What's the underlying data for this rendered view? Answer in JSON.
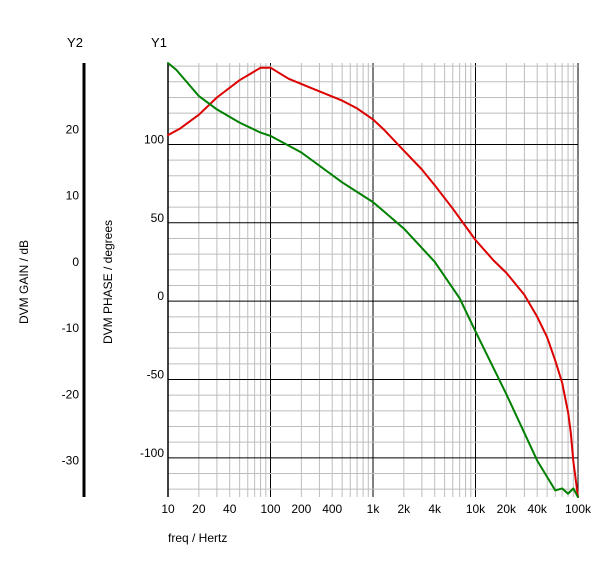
{
  "chart_data": {
    "type": "line",
    "axis_headers": {
      "y2": "Y2",
      "y1": "Y1"
    },
    "xlabel": "freq / Hertz",
    "y1label": "DVM PHASE / degrees",
    "y2label": "DVM GAIN / dB",
    "x_scale": "log",
    "xlim": [
      10,
      100000
    ],
    "y1lim": [
      -125,
      152
    ],
    "y2lim": [
      -35.5,
      30
    ],
    "x_ticks": [
      {
        "value": 10,
        "label": "10"
      },
      {
        "value": 20,
        "label": "20"
      },
      {
        "value": 40,
        "label": "40"
      },
      {
        "value": 100,
        "label": "100"
      },
      {
        "value": 200,
        "label": "200"
      },
      {
        "value": 400,
        "label": "400"
      },
      {
        "value": 1000,
        "label": "1k"
      },
      {
        "value": 2000,
        "label": "2k"
      },
      {
        "value": 4000,
        "label": "4k"
      },
      {
        "value": 10000,
        "label": "10k"
      },
      {
        "value": 20000,
        "label": "20k"
      },
      {
        "value": 40000,
        "label": "40k"
      },
      {
        "value": 100000,
        "label": "100k"
      }
    ],
    "y1_ticks": [
      {
        "value": 100,
        "label": "100"
      },
      {
        "value": 50,
        "label": "50"
      },
      {
        "value": 0,
        "label": "0"
      },
      {
        "value": -50,
        "label": "-50"
      },
      {
        "value": -100,
        "label": "-100"
      }
    ],
    "y2_ticks": [
      {
        "value": 20,
        "label": "20"
      },
      {
        "value": 10,
        "label": "10"
      },
      {
        "value": 0,
        "label": "0"
      },
      {
        "value": -10,
        "label": "-10"
      },
      {
        "value": -20,
        "label": "-20"
      },
      {
        "value": -30,
        "label": "-30"
      }
    ],
    "grid": true,
    "series": [
      {
        "color": "#dd0000",
        "axis": "y1",
        "x": [
          10,
          13,
          20,
          30,
          50,
          80,
          100,
          150,
          250,
          500,
          700,
          1000,
          1300,
          2000,
          3000,
          4000,
          6000,
          10000,
          15000,
          20000,
          30000,
          40000,
          50000,
          60000,
          70000,
          80000,
          85000,
          90000,
          100000
        ],
        "y": [
          106,
          110,
          119,
          130,
          141,
          149,
          149,
          142,
          136,
          128,
          123,
          116,
          109,
          96,
          84,
          74,
          59,
          39,
          26,
          18,
          4,
          -10,
          -23,
          -38,
          -52,
          -71,
          -84,
          -102,
          -125
        ]
      },
      {
        "color": "#008000",
        "axis": "y2",
        "x": [
          10,
          12,
          20,
          30,
          50,
          80,
          100,
          200,
          500,
          1000,
          2000,
          4000,
          7000,
          10000,
          20000,
          40000,
          60000,
          70000,
          80000,
          90000,
          100000
        ],
        "y": [
          30,
          29,
          25,
          23,
          21,
          19.5,
          19,
          16.5,
          12,
          9,
          5,
          0,
          -5.5,
          -10.5,
          -20,
          -30,
          -34.5,
          -34.2,
          -35.0,
          -34.2,
          -35.5
        ]
      }
    ]
  }
}
